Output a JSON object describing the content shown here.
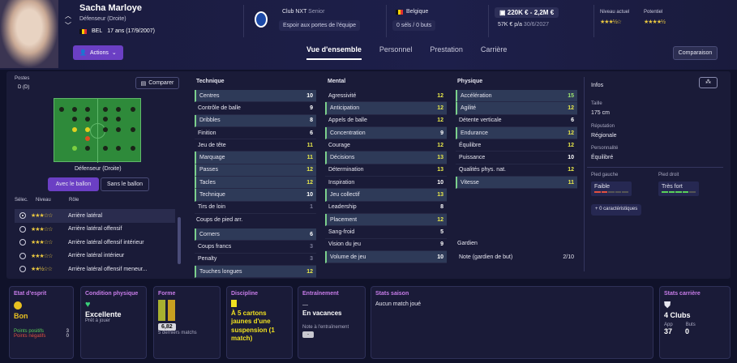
{
  "player": {
    "name": "Sacha Marloye",
    "position": "Défenseur (Droite)",
    "nation": "BEL",
    "age": "17 ans (17/9/2007)"
  },
  "club": {
    "name": "Club NXT",
    "level": "Senior",
    "desc": "Espoir aux portes de l'équipe"
  },
  "country": {
    "name": "Belgique",
    "stats": "0 séls / 0 buts"
  },
  "value": {
    "range": "220K € - 2,2M €",
    "wage": "57K € p/a",
    "until": "30/6/2027"
  },
  "ability": {
    "current_label": "Niveau actuel",
    "potential_label": "Potentiel",
    "current_stars": 3.5,
    "potential_stars": 4.5
  },
  "actions_label": "Actions",
  "tabs": [
    "Vue d'ensemble",
    "Personnel",
    "Prestation",
    "Carrière"
  ],
  "compare_label": "Comparaison",
  "positions": {
    "title": "Postes",
    "current": "D (D)",
    "compare_btn": "Comparer",
    "role_label": "Défenseur (Droite)",
    "with_ball": "Avec le ballon",
    "without_ball": "Sans le ballon"
  },
  "roles": {
    "headers": [
      "Sélec.",
      "Niveau",
      "Rôle"
    ],
    "items": [
      {
        "name": "Arrière latéral",
        "stars": "★★★☆☆",
        "selected": true
      },
      {
        "name": "Arrière latéral offensif",
        "stars": "★★★☆☆",
        "selected": false
      },
      {
        "name": "Arrière latéral offensif intérieur",
        "stars": "★★★☆☆",
        "selected": false
      },
      {
        "name": "Arrière latéral intérieur",
        "stars": "★★★☆☆",
        "selected": false
      },
      {
        "name": "Arrière latéral offensif meneur...",
        "stars": "★★½☆☆",
        "selected": false
      }
    ]
  },
  "technique": {
    "title": "Technique",
    "items": [
      {
        "n": "Centres",
        "v": "10"
      },
      {
        "n": "Contrôle de balle",
        "v": "9"
      },
      {
        "n": "Dribbles",
        "v": "8"
      },
      {
        "n": "Finition",
        "v": "6"
      },
      {
        "n": "Jeu de tête",
        "v": "11"
      },
      {
        "n": "Marquage",
        "v": "11"
      },
      {
        "n": "Passes",
        "v": "12"
      },
      {
        "n": "Tacles",
        "v": "12"
      },
      {
        "n": "Technique",
        "v": "10"
      },
      {
        "n": "Tirs de loin",
        "v": "1"
      }
    ]
  },
  "setpieces": {
    "title": "Coups de pied arr.",
    "items": [
      {
        "n": "Corners",
        "v": "6"
      },
      {
        "n": "Coups francs",
        "v": "3"
      },
      {
        "n": "Penalty",
        "v": "3"
      },
      {
        "n": "Touches longues",
        "v": "12"
      }
    ]
  },
  "mental": {
    "title": "Mental",
    "items": [
      {
        "n": "Agressivité",
        "v": "12"
      },
      {
        "n": "Anticipation",
        "v": "12"
      },
      {
        "n": "Appels de balle",
        "v": "12"
      },
      {
        "n": "Concentration",
        "v": "9"
      },
      {
        "n": "Courage",
        "v": "12"
      },
      {
        "n": "Décisions",
        "v": "13"
      },
      {
        "n": "Détermination",
        "v": "13"
      },
      {
        "n": "Inspiration",
        "v": "10"
      },
      {
        "n": "Jeu collectif",
        "v": "13"
      },
      {
        "n": "Leadership",
        "v": "8"
      },
      {
        "n": "Placement",
        "v": "12"
      },
      {
        "n": "Sang-froid",
        "v": "5"
      },
      {
        "n": "Vision du jeu",
        "v": "9"
      },
      {
        "n": "Volume de jeu",
        "v": "10"
      }
    ]
  },
  "physique": {
    "title": "Physique",
    "items": [
      {
        "n": "Accélération",
        "v": "15"
      },
      {
        "n": "Agilité",
        "v": "12"
      },
      {
        "n": "Détente verticale",
        "v": "6"
      },
      {
        "n": "Endurance",
        "v": "12"
      },
      {
        "n": "Équilibre",
        "v": "12"
      },
      {
        "n": "Puissance",
        "v": "10"
      },
      {
        "n": "Qualités phys. nat.",
        "v": "12"
      },
      {
        "n": "Vitesse",
        "v": "11"
      }
    ]
  },
  "gardien": {
    "title": "Gardien",
    "label": "Note (gardien de but)",
    "value": "2/10"
  },
  "infos": {
    "title": "Infos",
    "height_label": "Taille",
    "height": "175 cm",
    "rep_label": "Réputation",
    "rep": "Régionale",
    "pers_label": "Personnalité",
    "pers": "Équilibré",
    "lf_label": "Pied gauche",
    "lf": "Faible",
    "rf_label": "Pied droit",
    "rf": "Très fort",
    "traits": "0 caractéristiques"
  },
  "cards": {
    "mood": {
      "title": "Etat d'esprit",
      "value": "Bon",
      "pos_label": "Points positifs",
      "pos": "3",
      "neg_label": "Points négatifs",
      "neg": "0"
    },
    "condition": {
      "title": "Condition physique",
      "value": "Excellente",
      "sub": "Prêt à jouer"
    },
    "form": {
      "title": "Forme",
      "rating": "6,82",
      "sub": "5 derniers matchs"
    },
    "discipline": {
      "title": "Discipline",
      "text": "À 5 cartons jaunes d'une suspension (1 match)"
    },
    "training": {
      "title": "Entraînement",
      "dash": "—",
      "value": "En vacances",
      "note_label": "Note à l'entraînement",
      "note": "-"
    },
    "season": {
      "title": "Stats saison",
      "text": "Aucun match joué"
    },
    "career": {
      "title": "Stats carrière",
      "value": "4 Clubs",
      "app_label": "App",
      "app": "37",
      "goals_label": "Buts",
      "goals": "0"
    }
  }
}
